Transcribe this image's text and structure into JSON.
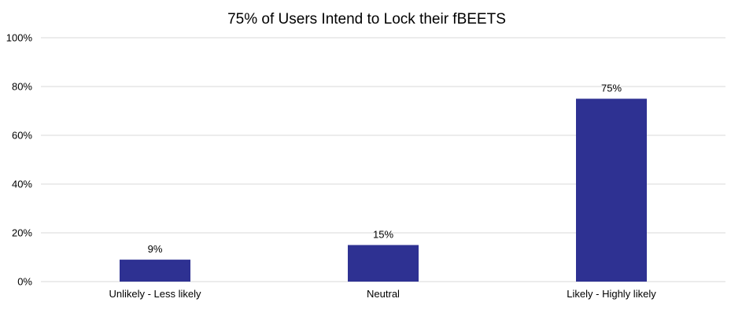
{
  "chart_data": {
    "type": "bar",
    "title": "75% of Users Intend to Lock their fBEETS",
    "categories": [
      "Unlikely - Less likely",
      "Neutral",
      "Likely - Highly likely"
    ],
    "values": [
      9,
      15,
      75
    ],
    "data_labels": [
      "9%",
      "15%",
      "75%"
    ],
    "y_ticks": [
      "0%",
      "20%",
      "40%",
      "60%",
      "80%",
      "100%"
    ],
    "ylim": [
      0,
      100
    ],
    "xlabel": "",
    "ylabel": "",
    "grid": true,
    "legend": "none",
    "bar_color": "#2e3192"
  }
}
